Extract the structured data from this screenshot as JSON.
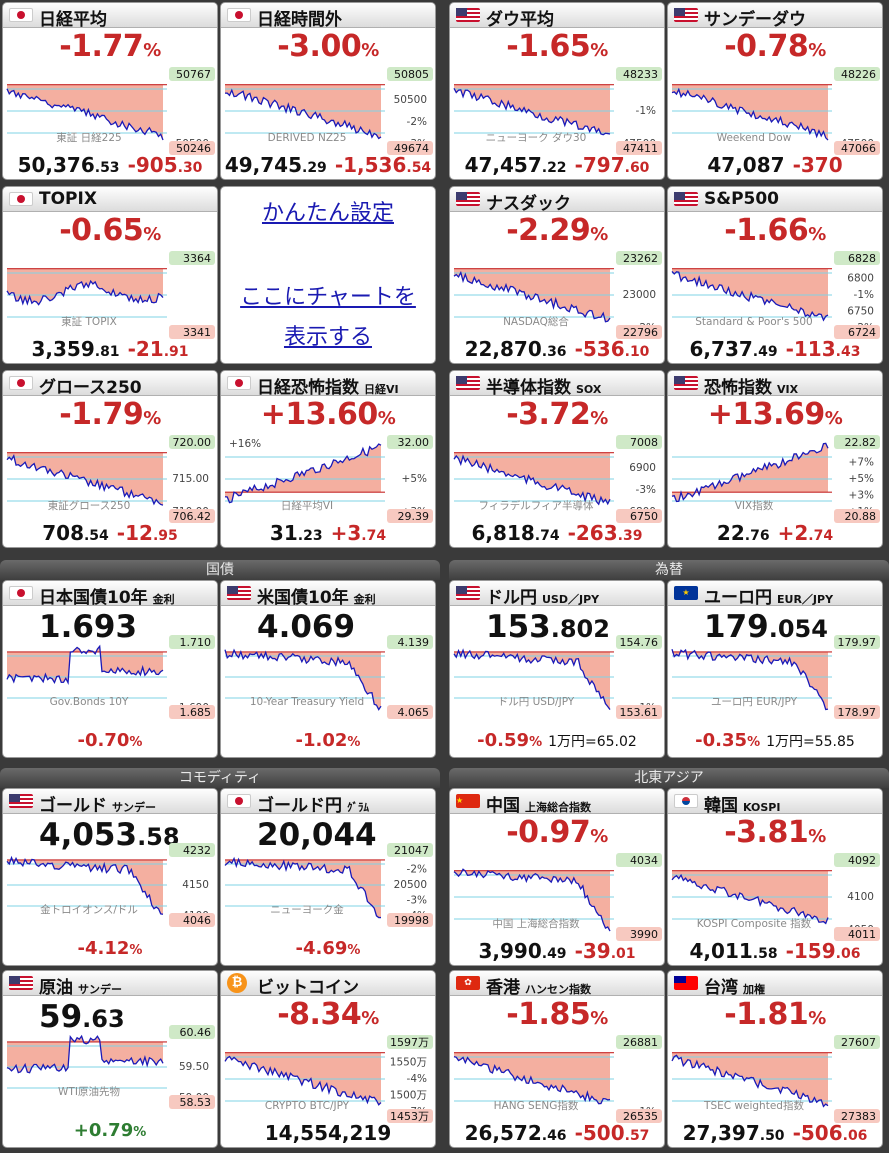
{
  "sections": {
    "bonds": "国債",
    "fx": "為替",
    "commodities": "コモディティ",
    "asia": "北東アジア"
  },
  "setup": {
    "link1": "かんたん設定",
    "link2": "ここにチャートを",
    "link3": "表示する"
  },
  "tiles": {
    "n225": {
      "name": "日経平均",
      "pct": "-1.77",
      "unit": "%",
      "price_int": "50,376",
      "price_dec": ".53",
      "chg_int": "-905",
      "chg_dec": ".30",
      "axis": [
        "51000",
        "50500"
      ],
      "tag_hi": "50767",
      "tag_lo": "50246",
      "wm": "東証 日経225",
      "trend": "down"
    },
    "n225night": {
      "name": "日経時間外",
      "pct": "-3.00",
      "unit": "%",
      "price_int": "49,745",
      "price_dec": ".29",
      "chg_int": "-1,536",
      "chg_dec": ".54",
      "axis": [
        "51000",
        "50500",
        "-2%",
        "-3%"
      ],
      "tag_hi": "50805",
      "tag_lo": "49674",
      "wm": "DERIVED NZ25",
      "trend": "down"
    },
    "dow": {
      "name": "ダウ平均",
      "pct": "-1.65",
      "unit": "%",
      "price_int": "47,457",
      "price_dec": ".22",
      "chg_int": "-797",
      "chg_dec": ".60",
      "axis": [
        "48000",
        "-1%",
        "47500"
      ],
      "tag_hi": "48233",
      "tag_lo": "47411",
      "wm": "ニューヨーク ダウ30",
      "trend": "down"
    },
    "sundow": {
      "name": "サンデーダウ",
      "pct": "-0.78",
      "unit": "%",
      "price_int": "47,087",
      "price_dec": "",
      "chg_int": "-370",
      "chg_dec": "",
      "axis": [
        "48000",
        "47500"
      ],
      "tag_hi": "48226",
      "tag_lo": "47066",
      "wm": "Weekend Dow",
      "trend": "down"
    },
    "topix": {
      "name": "TOPIX",
      "pct": "-0.65",
      "unit": "%",
      "price_int": "3,359",
      "price_dec": ".81",
      "chg_int": "-21",
      "chg_dec": ".91",
      "axis": [
        "3350"
      ],
      "tag_hi": "3364",
      "tag_lo": "3341",
      "wm": "東証 TOPIX",
      "trend": "flat"
    },
    "nasdaq": {
      "name": "ナスダック",
      "pct": "-2.29",
      "unit": "%",
      "price_int": "22,870",
      "price_dec": ".36",
      "chg_int": "-536",
      "chg_dec": ".10",
      "axis": [
        "-1%",
        "23000",
        "-2%"
      ],
      "tag_hi": "23262",
      "tag_lo": "22796",
      "wm": "NASDAQ総合",
      "trend": "down"
    },
    "sp500": {
      "name": "S&P500",
      "pct": "-1.66",
      "unit": "%",
      "price_int": "6,737",
      "price_dec": ".49",
      "chg_int": "-113",
      "chg_dec": ".43",
      "axis": [
        "6850",
        "6800",
        "-1%",
        "6750",
        "-2%"
      ],
      "tag_hi": "6828",
      "tag_lo": "6724",
      "wm": "Standard & Poor's 500",
      "trend": "down"
    },
    "growth": {
      "name": "グロース250",
      "pct": "-1.79",
      "unit": "%",
      "price_int": "708",
      "price_dec": ".54",
      "chg_int": "-12",
      "chg_dec": ".95",
      "axis": [
        "720.00",
        "715.00",
        "710.00"
      ],
      "tag_hi": "720.00",
      "tag_lo": "706.42",
      "wm": "東証グロース250",
      "trend": "down"
    },
    "nkvi": {
      "name": "日経恐怖指数",
      "sub": "日経VI",
      "pct": "+13.60",
      "unit": "%",
      "price_int": "31",
      "price_dec": ".23",
      "chg_int": "+3",
      "chg_dec": ".74",
      "axis": [
        "+10%",
        "+5%",
        "+3%"
      ],
      "tag_hi": "32.00",
      "tag_lo": "29.39",
      "wm": "日経平均VI",
      "top_tag": "+16%",
      "trend": "up"
    },
    "sox": {
      "name": "半導体指数",
      "sub": "SOX",
      "pct": "-3.72",
      "unit": "%",
      "price_int": "6,818",
      "price_dec": ".74",
      "chg_int": "-263",
      "chg_dec": ".39",
      "axis": [
        "-2%",
        "6900",
        "-3%",
        "6800"
      ],
      "tag_hi": "7008",
      "tag_lo": "6750",
      "wm": "フィラデルフィア半導体",
      "trend": "down"
    },
    "vix": {
      "name": "恐怖指数",
      "sub": "VIX",
      "pct": "+13.69",
      "unit": "%",
      "price_int": "22",
      "price_dec": ".76",
      "chg_int": "+2",
      "chg_dec": ".74",
      "axis": [
        "+10%",
        "+7%",
        "+5%",
        "+3%",
        "+1%"
      ],
      "tag_hi": "22.82",
      "tag_lo": "20.88",
      "wm": "VIX指数",
      "trend": "up"
    },
    "jgb": {
      "name": "日本国債10年",
      "sub": "金利",
      "value_int": "1.693",
      "value_dec": "",
      "chg": "-0.70",
      "unit": "%",
      "axis": [
        "1.700",
        "1.690"
      ],
      "tag_hi": "1.710",
      "tag_lo": "1.685",
      "wm": "Gov.Bonds 10Y"
    },
    "ust": {
      "name": "米国債10年",
      "sub": "金利",
      "value_int": "4.069",
      "value_dec": "",
      "chg": "-1.02",
      "unit": "%",
      "axis": [
        "4.100"
      ],
      "tag_hi": "4.139",
      "tag_lo": "4.065",
      "wm": "10-Year Treasury Yield"
    },
    "usdjpy": {
      "name": "ドル円",
      "sub": "USD／JPY",
      "value_int": "153",
      "value_dec": ".802",
      "chg": "-0.59",
      "unit": "%",
      "extra": "1万円=65.02",
      "axis": [
        "154.00",
        "-1%"
      ],
      "tag_hi": "154.76",
      "tag_lo": "153.61",
      "wm": "ドル円 USD/JPY"
    },
    "eurjpy": {
      "name": "ユーロ円",
      "sub": "EUR／JPY",
      "value_int": "179",
      "value_dec": ".054",
      "chg": "-0.35",
      "unit": "%",
      "extra": "1万円=55.85",
      "axis": [
        "178.00"
      ],
      "tag_hi": "179.97",
      "tag_lo": "178.97",
      "wm": "ユーロ円 EUR/JPY"
    },
    "gold": {
      "name": "ゴールド",
      "sub": "サンデー",
      "value_int": "4,053",
      "value_dec": ".58",
      "chg": "-4.12",
      "unit": "%",
      "axis": [
        "-1%",
        "4150",
        "4100"
      ],
      "tag_hi": "4232",
      "tag_lo": "4046",
      "wm": "金トロイオンス/ドル"
    },
    "goldjpy": {
      "name": "ゴールド円",
      "sub": "ｸﾞﾗﾑ",
      "value_int": "20,044",
      "value_dec": "",
      "chg": "-4.69",
      "unit": "%",
      "axis": [
        "-1%",
        "-2%",
        "20500",
        "-3%",
        "-4%"
      ],
      "tag_hi": "21047",
      "tag_lo": "19998",
      "wm": "ニューヨーク金"
    },
    "shanghai": {
      "name": "中国",
      "sub": "上海総合指数",
      "pct": "-0.97",
      "unit": "%",
      "price_int": "3,990",
      "price_dec": ".49",
      "chg_int": "-39",
      "chg_dec": ".01",
      "axis": [
        "4000"
      ],
      "tag_hi": "4034",
      "tag_lo": "3990",
      "wm": "中国 上海総合指数",
      "trend": "down"
    },
    "kospi": {
      "name": "韓国",
      "sub": "KOSPI",
      "pct": "-3.81",
      "unit": "%",
      "price_int": "4,011",
      "price_dec": ".58",
      "chg_int": "-159",
      "chg_dec": ".06",
      "axis": [
        "4150",
        "4100",
        "4050"
      ],
      "tag_hi": "4092",
      "tag_lo": "4011",
      "wm": "KOSPI Composite 指数",
      "trend": "down"
    },
    "oil": {
      "name": "原油",
      "sub": "サンデー",
      "value_int": "59",
      "value_dec": ".63",
      "chg": "+0.79",
      "unit": "%",
      "axis": [
        "60.00",
        "59.50",
        "59.00"
      ],
      "tag_hi": "60.46",
      "tag_lo": "58.53",
      "wm": "WTI原油先物"
    },
    "btc": {
      "name": "ビットコイン",
      "pct": "-8.34",
      "unit": "%",
      "foot": "14,554,219",
      "axis": [
        "-1%",
        "1550万",
        "-4%",
        "1500万",
        "-7%"
      ],
      "tag_hi": "1597万",
      "tag_lo": "1453万",
      "wm": "CRYPTO BTC/JPY"
    },
    "hsi": {
      "name": "香港",
      "sub": "ハンセン指数",
      "pct": "-1.85",
      "unit": "%",
      "price_int": "26,572",
      "price_dec": ".46",
      "chg_int": "-500",
      "chg_dec": ".57",
      "axis": [
        "27000",
        "-1%"
      ],
      "tag_hi": "26881",
      "tag_lo": "26535",
      "wm": "HANG SENG指数",
      "trend": "down"
    },
    "taiwan": {
      "name": "台湾",
      "sub": "加権",
      "pct": "-1.81",
      "unit": "%",
      "price_int": "27,397",
      "price_dec": ".50",
      "chg_int": "-506",
      "chg_dec": ".06",
      "axis": [
        "27500"
      ],
      "tag_hi": "27607",
      "tag_lo": "27383",
      "wm": "TSEC weighted指数",
      "trend": "down"
    }
  },
  "colors": {
    "down": "#c62828",
    "up": "#2e7d32",
    "fill_red": "#f2a18f",
    "line": "#1a1ab8"
  }
}
